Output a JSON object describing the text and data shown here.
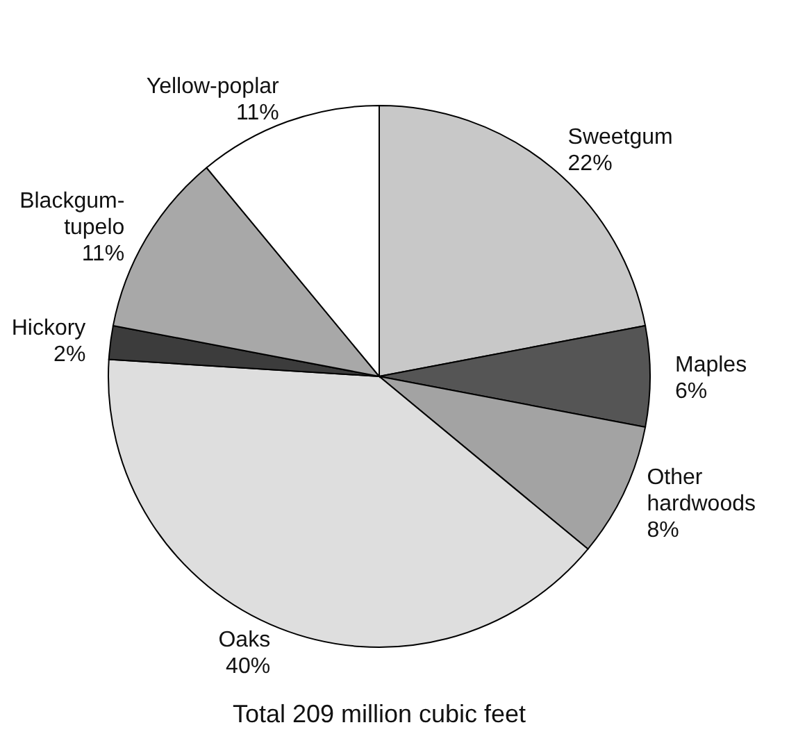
{
  "chart_data": {
    "type": "pie",
    "title": "Total 209 million cubic feet",
    "categories": [
      "Sweetgum",
      "Maples",
      "Other hardwoods",
      "Oaks",
      "Hickory",
      "Blackgum-tupelo",
      "Yellow-poplar"
    ],
    "values": [
      22,
      6,
      8,
      40,
      2,
      11,
      11
    ],
    "colors": [
      "#c8c8c8",
      "#555555",
      "#a3a3a3",
      "#dedede",
      "#3c3c3c",
      "#a8a8a8",
      "#ffffff"
    ],
    "value_labels": [
      "22%",
      "6%",
      "8%",
      "40%",
      "2%",
      "11%",
      "11%"
    ]
  }
}
